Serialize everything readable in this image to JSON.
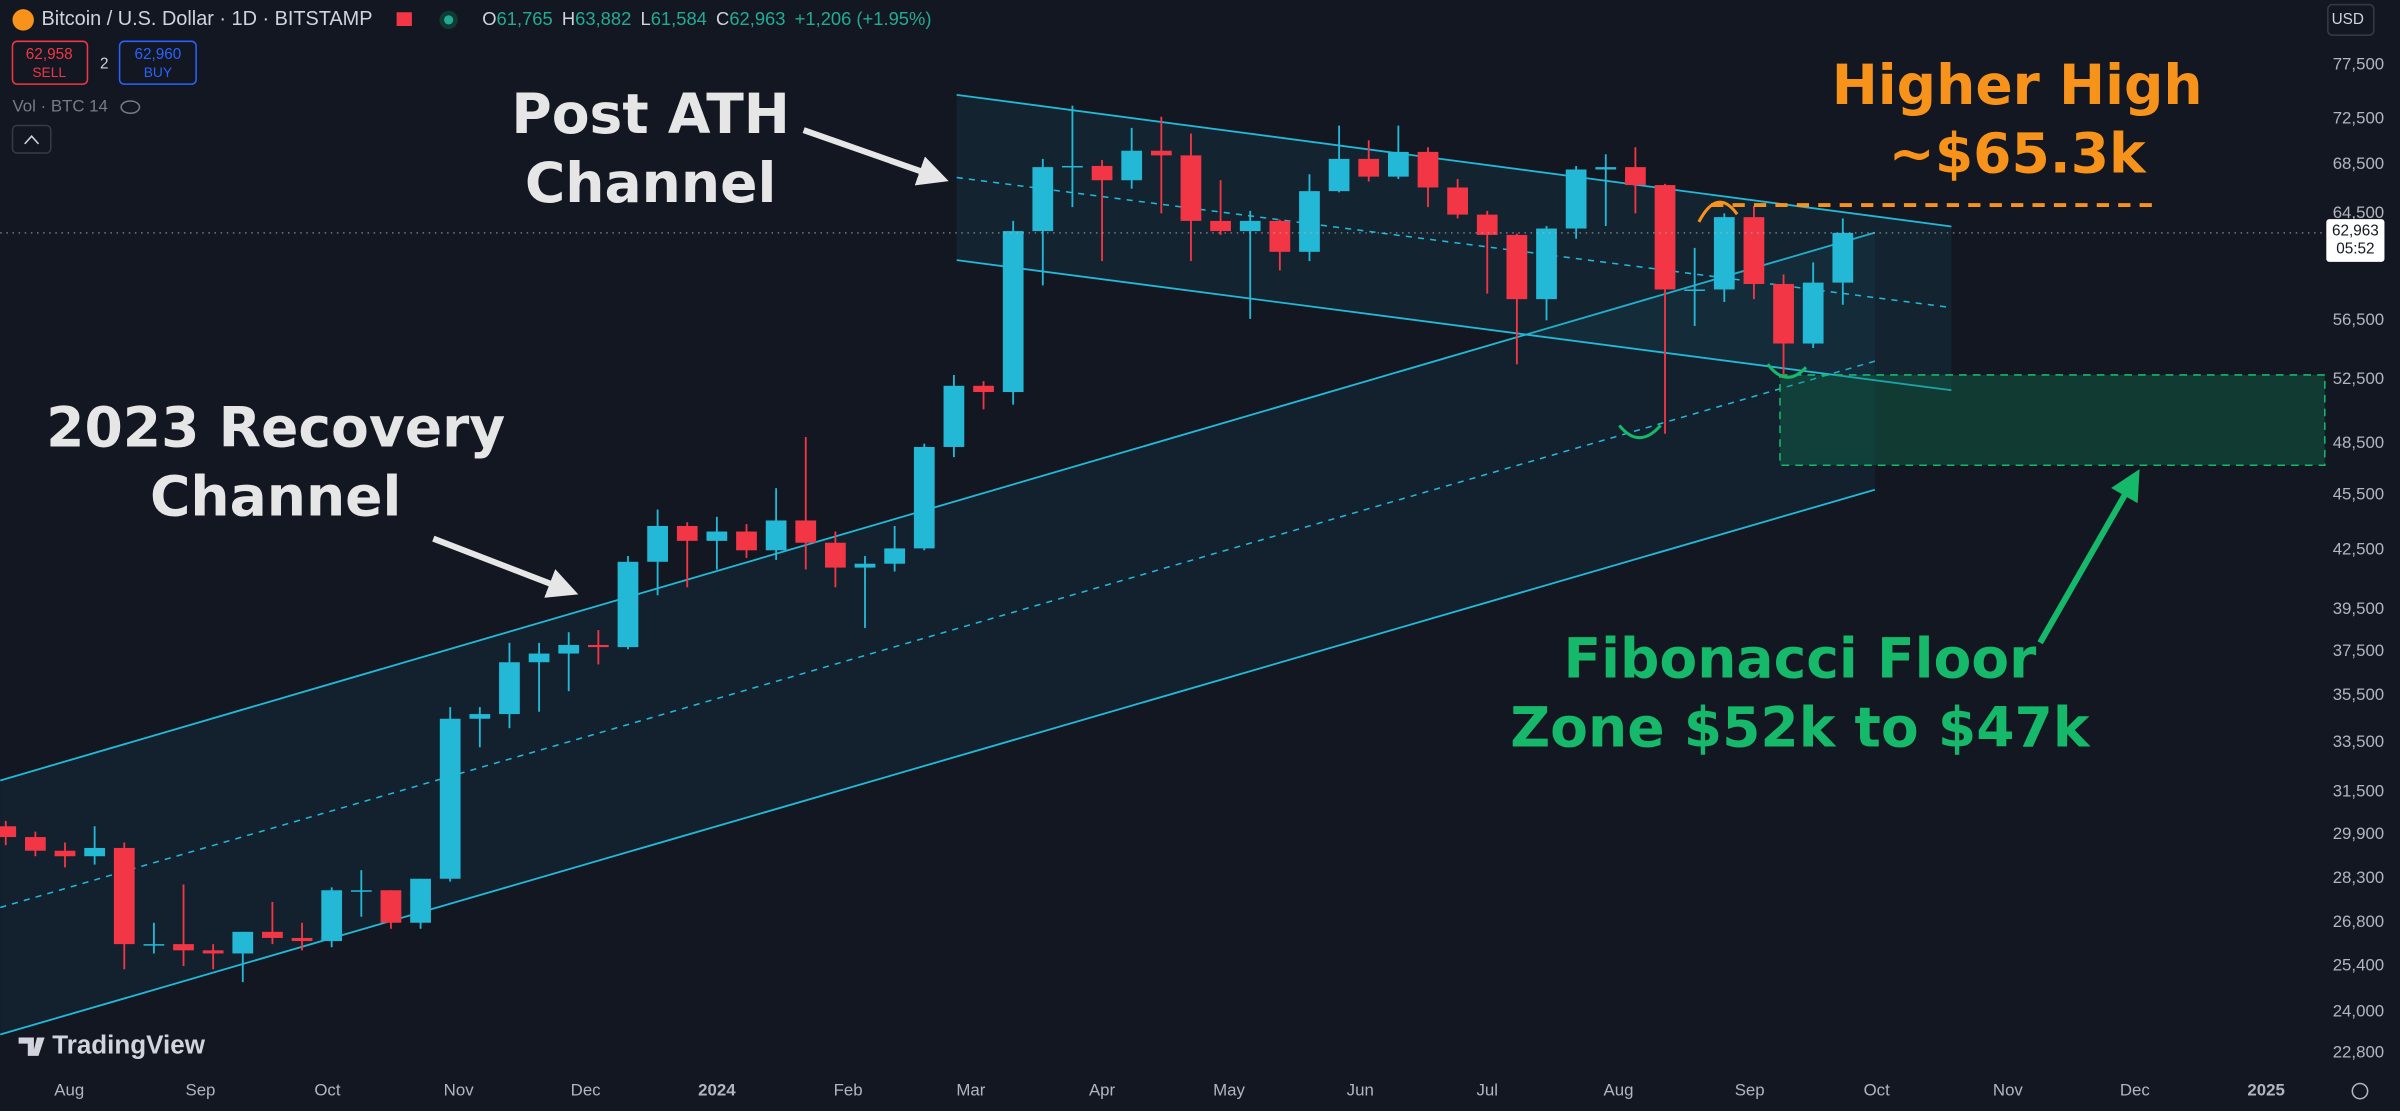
{
  "header": {
    "symbol": "Bitcoin / U.S. Dollar · 1D · BITSTAMP",
    "ohlc": [
      {
        "label": "O",
        "value": "61,765"
      },
      {
        "label": "H",
        "value": "63,882"
      },
      {
        "label": "L",
        "value": "61,584"
      },
      {
        "label": "C",
        "value": "62,963"
      }
    ],
    "change": "+1,206 (+1.95%)",
    "sell": {
      "price": "62,958",
      "label": "SELL"
    },
    "spread": "2",
    "buy": {
      "price": "62,960",
      "label": "BUY"
    },
    "volume_label": "Vol · BTC 14",
    "currency": "USD",
    "logo": "TradingView"
  },
  "chart_data": {
    "type": "candlestick",
    "log_scale": true,
    "grid": false,
    "up_color": "#22b8d6",
    "down_color": "#f23645",
    "xlim": [
      -16.3,
      532.5
    ],
    "ylim": [
      22300,
      84000
    ],
    "xticks": [
      {
        "value": 0,
        "label": "Aug"
      },
      {
        "value": 31,
        "label": "Sep"
      },
      {
        "value": 61,
        "label": "Oct"
      },
      {
        "value": 92,
        "label": "Nov"
      },
      {
        "value": 122,
        "label": "Dec"
      },
      {
        "value": 153,
        "label": "2024"
      },
      {
        "value": 184,
        "label": "Feb"
      },
      {
        "value": 213,
        "label": "Mar"
      },
      {
        "value": 244,
        "label": "Apr"
      },
      {
        "value": 274,
        "label": "May"
      },
      {
        "value": 305,
        "label": "Jun"
      },
      {
        "value": 335,
        "label": "Jul"
      },
      {
        "value": 366,
        "label": "Aug"
      },
      {
        "value": 397,
        "label": "Sep"
      },
      {
        "value": 427,
        "label": "Oct"
      },
      {
        "value": 458,
        "label": "Nov"
      },
      {
        "value": 488,
        "label": "Dec"
      },
      {
        "value": 519,
        "label": "2025"
      }
    ],
    "yticks": [
      {
        "value": 77500,
        "label": "77,500"
      },
      {
        "value": 72500,
        "label": "72,500"
      },
      {
        "value": 68500,
        "label": "68,500"
      },
      {
        "value": 64500,
        "label": "64,500"
      },
      {
        "value": 56500,
        "label": "56,500"
      },
      {
        "value": 52500,
        "label": "52,500"
      },
      {
        "value": 48500,
        "label": "48,500"
      },
      {
        "value": 45500,
        "label": "45,500"
      },
      {
        "value": 42500,
        "label": "42,500"
      },
      {
        "value": 39500,
        "label": "39,500"
      },
      {
        "value": 37500,
        "label": "37,500"
      },
      {
        "value": 35500,
        "label": "35,500"
      },
      {
        "value": 33500,
        "label": "33,500"
      },
      {
        "value": 31500,
        "label": "31,500"
      },
      {
        "value": 29900,
        "label": "29,900"
      },
      {
        "value": 28300,
        "label": "28,300"
      },
      {
        "value": 26800,
        "label": "26,800"
      },
      {
        "value": 25400,
        "label": "25,400"
      },
      {
        "value": 24000,
        "label": "24,000"
      },
      {
        "value": 22800,
        "label": "22,800"
      }
    ],
    "x": [
      -15,
      -8,
      -1,
      6,
      13,
      20,
      27,
      34,
      41,
      48,
      55,
      62,
      69,
      76,
      83,
      90,
      97,
      104,
      111,
      118,
      125,
      132,
      139,
      146,
      153,
      160,
      167,
      174,
      181,
      188,
      195,
      202,
      209,
      216,
      223,
      230,
      237,
      244,
      251,
      258,
      265,
      272,
      279,
      286,
      293,
      300,
      307,
      314,
      321,
      328,
      335,
      342,
      349,
      356,
      363,
      370,
      377,
      384,
      391,
      398,
      405,
      412,
      419
    ],
    "open": [
      30200,
      29800,
      29300,
      29100,
      29400,
      26100,
      26100,
      25900,
      25800,
      26500,
      26300,
      26200,
      27900,
      27900,
      26800,
      28300,
      34500,
      34700,
      37000,
      37400,
      37800,
      37700,
      41900,
      43800,
      43000,
      43500,
      42500,
      44100,
      42900,
      41600,
      41800,
      42600,
      48300,
      52100,
      51700,
      63100,
      68300,
      68400,
      67200,
      69700,
      69300,
      63900,
      63100,
      63900,
      61500,
      66300,
      69000,
      67500,
      69600,
      66600,
      64400,
      62800,
      58000,
      63300,
      68100,
      68300,
      66800,
      58700,
      58700,
      64200,
      59100,
      54900,
      59200
    ],
    "high": [
      30400,
      30000,
      29600,
      30200,
      29600,
      26800,
      28100,
      26100,
      26500,
      27500,
      26800,
      28000,
      28600,
      27900,
      28300,
      35000,
      35000,
      37900,
      37900,
      38400,
      38500,
      42200,
      44700,
      44000,
      44300,
      43900,
      45900,
      48900,
      43500,
      42200,
      43800,
      48500,
      52800,
      52400,
      63900,
      69000,
      73700,
      68900,
      71700,
      72700,
      71200,
      67200,
      64700,
      64000,
      67700,
      71900,
      70600,
      71900,
      70000,
      67300,
      64700,
      62900,
      63500,
      68400,
      69400,
      70000,
      66900,
      61800,
      64500,
      65100,
      59800,
      60700,
      64100
    ],
    "low": [
      29500,
      29100,
      28700,
      28800,
      25300,
      25800,
      25400,
      25300,
      24900,
      26100,
      25900,
      26000,
      27000,
      26600,
      26600,
      28200,
      33300,
      34100,
      34800,
      35700,
      36900,
      37600,
      40200,
      40600,
      41500,
      42100,
      42000,
      41500,
      40600,
      38600,
      41400,
      42500,
      47700,
      50600,
      50900,
      59000,
      65000,
      60800,
      66500,
      64500,
      60800,
      62800,
      56600,
      60100,
      60800,
      66200,
      67100,
      67300,
      65000,
      64100,
      58400,
      53500,
      56500,
      62500,
      63500,
      64500,
      49100,
      56100,
      57800,
      58000,
      52600,
      54600,
      57600
    ],
    "close": [
      29800,
      29300,
      29100,
      29400,
      26100,
      26100,
      25900,
      25800,
      26500,
      26300,
      26200,
      27900,
      27900,
      26800,
      28300,
      34500,
      34700,
      37000,
      37400,
      37800,
      37700,
      41900,
      43800,
      43000,
      43500,
      42500,
      44100,
      42900,
      41600,
      41800,
      42600,
      48300,
      52100,
      51700,
      63100,
      68300,
      68400,
      67200,
      69700,
      69300,
      63900,
      63100,
      63900,
      61500,
      66300,
      69000,
      67500,
      69600,
      66600,
      64400,
      62800,
      58000,
      63300,
      68100,
      68300,
      66800,
      58700,
      58700,
      64200,
      59100,
      54900,
      59200,
      62963
    ],
    "price_label": "62,963",
    "countdown": "05:52",
    "annotations": [
      {
        "lines": [
          "Post ATH",
          "Channel"
        ],
        "color": "#e6e6e6"
      },
      {
        "lines": [
          "2023 Recovery",
          "Channel"
        ],
        "color": "#e6e6e6"
      },
      {
        "lines": [
          "Higher High",
          "~$65.3k"
        ],
        "color": "#f7931a"
      },
      {
        "lines": [
          "Fibonacci Floor",
          "Zone $52k to $47k"
        ],
        "color": "#16b86a"
      }
    ]
  }
}
